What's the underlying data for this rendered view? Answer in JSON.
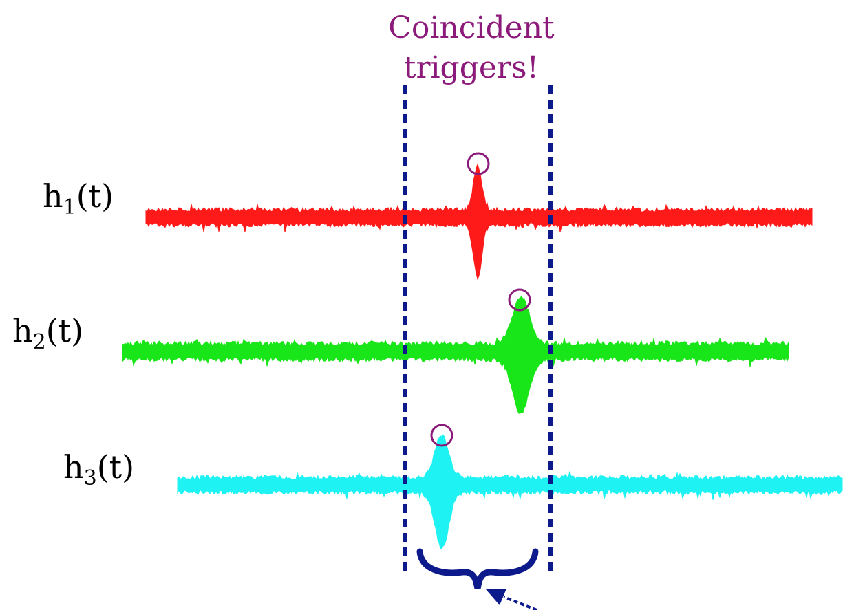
{
  "annotation": {
    "line1": "Coincident",
    "line2": "triggers!",
    "color": "#8b1a7a"
  },
  "channels": [
    {
      "base": "h",
      "sub": "1",
      "suffix": "(t)",
      "color": "#ff1a1a"
    },
    {
      "base": "h",
      "sub": "2",
      "suffix": "(t)",
      "color": "#19e619"
    },
    {
      "base": "h",
      "sub": "3",
      "suffix": "(t)",
      "color": "#1ff2f2"
    }
  ],
  "window_color": "#0d1a8c",
  "brace_color": "#0d1a8c",
  "marker_color": "#8b1a7a"
}
